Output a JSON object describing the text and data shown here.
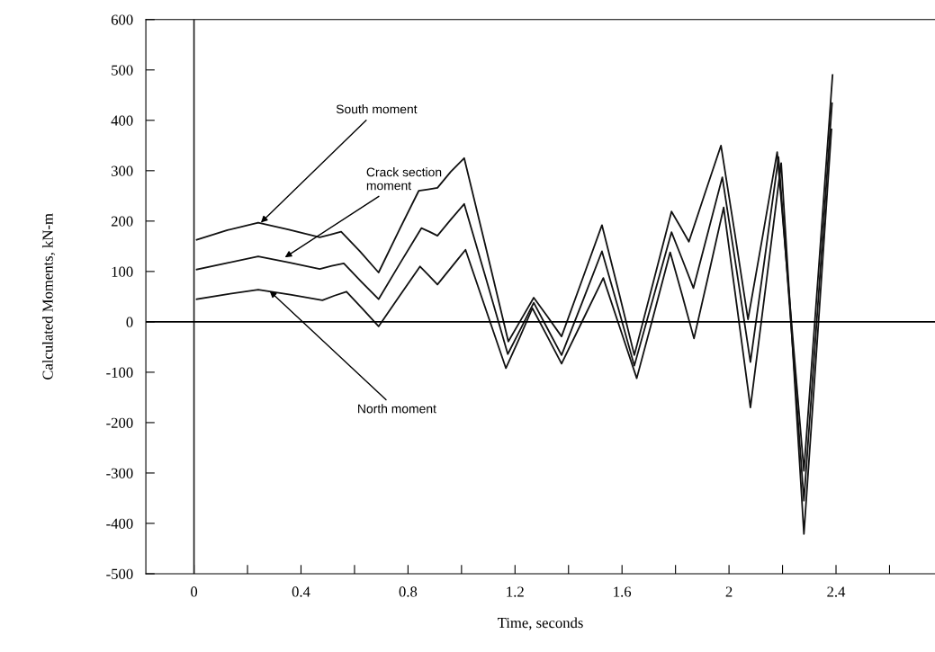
{
  "chart_data": {
    "type": "line",
    "xlabel": "Time, seconds",
    "ylabel": "Calculated Moments, kN-m",
    "xlim": [
      -0.18,
      2.77
    ],
    "ylim": [
      -500,
      600
    ],
    "xticks": [
      0,
      {
        "value": 0.2,
        "label": null
      },
      0.4,
      {
        "value": 0.6,
        "label": null
      },
      0.8,
      {
        "value": 1.0,
        "label": null
      },
      1.2,
      {
        "value": 1.4,
        "label": null
      },
      1.6,
      {
        "value": 1.8,
        "label": null
      },
      2,
      {
        "value": 2.2,
        "label": null
      },
      2.4,
      {
        "value": 2.6,
        "label": null
      }
    ],
    "yticks": [
      -500,
      -400,
      -300,
      -200,
      -100,
      0,
      100,
      200,
      300,
      400,
      500,
      600
    ],
    "grid": false,
    "legend": false,
    "marker": "none",
    "line_style": "solid",
    "ref_lines": [
      {
        "axis": "x",
        "value": 0,
        "color": "#222222"
      },
      {
        "axis": "y",
        "value": 0,
        "color": "#000000"
      }
    ],
    "annotations": [
      {
        "text": "South moment",
        "x": 0.25,
        "y": 197
      },
      {
        "text": "Crack section\nmoment",
        "x": 0.34,
        "y": 128
      },
      {
        "text": "North moment",
        "x": 0.283,
        "y": 61
      }
    ],
    "series": [
      {
        "color": "#111111",
        "x": [
          0.01,
          0.125,
          0.24,
          0.355,
          0.47,
          0.51,
          0.55,
          0.62,
          0.69,
          0.765,
          0.84,
          0.875,
          0.91,
          0.96,
          1.01,
          1.093,
          1.175,
          1.223,
          1.27,
          1.322,
          1.374,
          1.45,
          1.525,
          1.586,
          1.646,
          1.716,
          1.785,
          1.818,
          1.85,
          1.91,
          1.97,
          2.021,
          2.071,
          2.126,
          2.18,
          2.23,
          2.28,
          2.334,
          2.387
        ],
        "values": [
          163,
          182,
          197,
          183,
          168,
          173,
          179,
          140,
          98,
          180,
          260,
          263,
          266,
          298,
          325,
          143,
          -39,
          5,
          48,
          10,
          -29,
          82,
          192,
          63,
          -66,
          77,
          219,
          189,
          159,
          255,
          350,
          178,
          5,
          171,
          337,
          21,
          -296,
          97,
          490
        ]
      },
      {
        "color": "#111111",
        "x": [
          0.01,
          0.125,
          0.24,
          0.355,
          0.47,
          0.515,
          0.56,
          0.625,
          0.69,
          0.77,
          0.85,
          0.88,
          0.91,
          0.96,
          1.01,
          1.092,
          1.173,
          1.222,
          1.27,
          1.322,
          1.374,
          1.45,
          1.525,
          1.586,
          1.646,
          1.716,
          1.785,
          1.826,
          1.867,
          1.921,
          1.975,
          2.028,
          2.08,
          2.133,
          2.185,
          2.233,
          2.28,
          2.333,
          2.385
        ],
        "values": [
          104,
          117,
          130,
          118,
          105,
          111,
          116,
          80,
          45,
          116,
          186,
          179,
          171,
          203,
          234,
          85,
          -64,
          -13,
          38,
          -14,
          -66,
          37,
          140,
          27,
          -87,
          46,
          178,
          123,
          67,
          177,
          287,
          104,
          -80,
          124,
          327,
          -14,
          -355,
          40,
          434
        ]
      },
      {
        "color": "#111111",
        "x": [
          0.01,
          0.125,
          0.24,
          0.36,
          0.48,
          0.525,
          0.57,
          0.63,
          0.69,
          0.768,
          0.845,
          0.878,
          0.91,
          0.963,
          1.015,
          1.09,
          1.166,
          1.216,
          1.265,
          1.32,
          1.374,
          1.452,
          1.53,
          1.593,
          1.655,
          1.718,
          1.78,
          1.825,
          1.869,
          1.925,
          1.98,
          2.03,
          2.08,
          2.138,
          2.195,
          2.238,
          2.28,
          2.332,
          2.383
        ],
        "values": [
          45,
          55,
          64,
          54,
          43,
          52,
          60,
          26,
          -9,
          51,
          110,
          92,
          74,
          109,
          143,
          26,
          -92,
          -33,
          27,
          -28,
          -83,
          2,
          87,
          -13,
          -112,
          13,
          138,
          53,
          -33,
          97,
          227,
          29,
          -170,
          73,
          315,
          -53,
          -421,
          -20,
          382
        ]
      }
    ]
  }
}
